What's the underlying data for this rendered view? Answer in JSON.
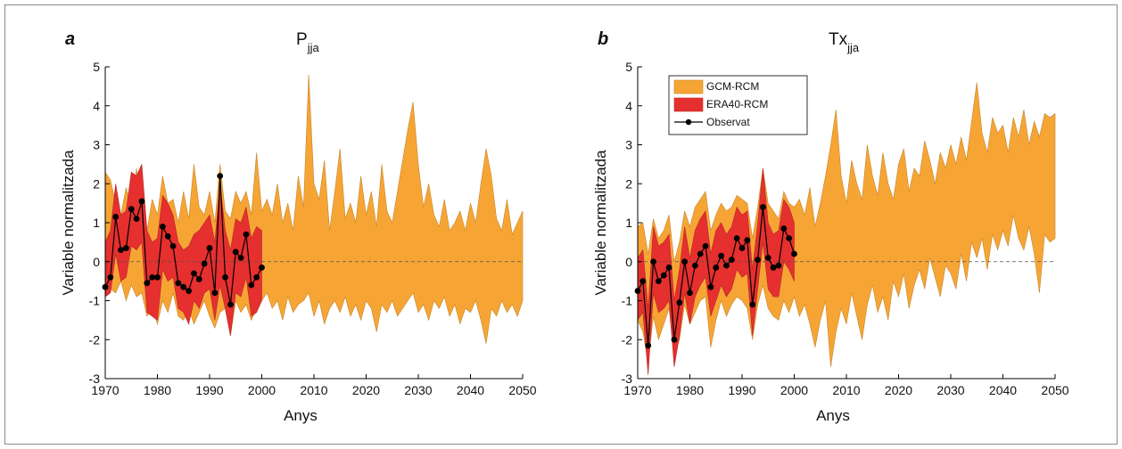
{
  "chart_data": [
    {
      "type": "band-line",
      "panel_label": "a",
      "title": "P",
      "title_sub": "jja",
      "xlabel": "Anys",
      "ylabel": "Variable normalitzada",
      "xlim": [
        1970,
        2050
      ],
      "xticks": [
        1970,
        1980,
        1990,
        2000,
        2010,
        2020,
        2030,
        2040,
        2050
      ],
      "ylim": [
        -3,
        5
      ],
      "yticks": [
        -3,
        -2,
        -1,
        0,
        1,
        2,
        3,
        4,
        5
      ],
      "reference_line": 0,
      "series": [
        {
          "name": "GCM-RCM",
          "kind": "band",
          "color": "#f6a535",
          "x": [
            1970,
            1971,
            1972,
            1973,
            1974,
            1975,
            1976,
            1977,
            1978,
            1979,
            1980,
            1981,
            1982,
            1983,
            1984,
            1985,
            1986,
            1987,
            1988,
            1989,
            1990,
            1991,
            1992,
            1993,
            1994,
            1995,
            1996,
            1997,
            1998,
            1999,
            2000,
            2001,
            2002,
            2003,
            2004,
            2005,
            2006,
            2007,
            2008,
            2009,
            2010,
            2011,
            2012,
            2013,
            2014,
            2015,
            2016,
            2017,
            2018,
            2019,
            2020,
            2021,
            2022,
            2023,
            2024,
            2025,
            2026,
            2027,
            2028,
            2029,
            2030,
            2031,
            2032,
            2033,
            2034,
            2035,
            2036,
            2037,
            2038,
            2039,
            2040,
            2041,
            2042,
            2043,
            2044,
            2045,
            2046,
            2047,
            2048,
            2049,
            2050
          ],
          "upper": [
            2.3,
            2.1,
            1.5,
            1.2,
            1.9,
            1.4,
            2.4,
            1.0,
            0.8,
            1.6,
            1.2,
            2.2,
            1.5,
            1.6,
            1.0,
            1.8,
            1.1,
            2.5,
            1.4,
            1.2,
            1.8,
            1.0,
            2.5,
            1.3,
            1.1,
            1.8,
            1.5,
            1.8,
            1.2,
            2.8,
            1.3,
            1.6,
            1.2,
            2.0,
            1.0,
            1.5,
            0.8,
            2.2,
            1.4,
            4.8,
            2.0,
            1.6,
            2.6,
            0.8,
            1.8,
            2.9,
            1.1,
            1.5,
            1.0,
            2.2,
            1.2,
            1.8,
            0.9,
            2.5,
            1.3,
            1.0,
            1.8,
            2.6,
            3.4,
            4.1,
            2.5,
            1.4,
            2.0,
            1.2,
            0.9,
            1.6,
            0.8,
            1.0,
            1.3,
            0.8,
            1.5,
            1.0,
            2.0,
            2.9,
            2.2,
            1.1,
            0.8,
            1.6,
            0.7,
            1.0,
            1.3
          ],
          "lower": [
            -0.9,
            -0.7,
            -0.8,
            -0.5,
            -1.0,
            -0.6,
            -0.9,
            -0.8,
            -1.4,
            -1.2,
            -1.6,
            -1.0,
            -1.3,
            -0.8,
            -1.4,
            -1.5,
            -1.2,
            -1.6,
            -1.3,
            -1.0,
            -1.4,
            -1.7,
            -1.3,
            -1.2,
            -1.9,
            -1.0,
            -1.3,
            -1.1,
            -1.5,
            -1.2,
            -1.0,
            -0.8,
            -1.2,
            -1.0,
            -1.5,
            -0.9,
            -1.3,
            -1.1,
            -1.0,
            -0.8,
            -1.4,
            -1.0,
            -1.6,
            -1.2,
            -1.0,
            -1.3,
            -0.9,
            -1.4,
            -1.1,
            -1.5,
            -1.0,
            -1.2,
            -1.8,
            -1.1,
            -1.3,
            -1.0,
            -1.4,
            -1.2,
            -1.0,
            -0.8,
            -1.3,
            -1.1,
            -1.5,
            -1.0,
            -1.2,
            -0.9,
            -1.4,
            -1.1,
            -1.6,
            -1.2,
            -1.3,
            -1.0,
            -1.5,
            -2.1,
            -1.2,
            -1.4,
            -1.0,
            -1.3,
            -1.1,
            -1.4,
            -1.0
          ]
        },
        {
          "name": "ERA40-RCM",
          "kind": "band",
          "color": "#e5302f",
          "x": [
            1970,
            1971,
            1972,
            1973,
            1974,
            1975,
            1976,
            1977,
            1978,
            1979,
            1980,
            1981,
            1982,
            1983,
            1984,
            1985,
            1986,
            1987,
            1988,
            1989,
            1990,
            1991,
            1992,
            1993,
            1994,
            1995,
            1996,
            1997,
            1998,
            1999,
            2000
          ],
          "upper": [
            0.5,
            0.8,
            2.0,
            1.2,
            1.3,
            2.3,
            2.2,
            2.5,
            0.8,
            0.5,
            0.6,
            1.7,
            1.5,
            1.2,
            0.5,
            0.3,
            0.4,
            0.7,
            0.8,
            1.0,
            1.2,
            0.5,
            2.0,
            0.8,
            0.3,
            1.1,
            1.0,
            1.4,
            0.6,
            0.9,
            0.8
          ],
          "lower": [
            -0.9,
            -0.8,
            0.2,
            -0.5,
            -0.4,
            0.4,
            0.3,
            0.5,
            -1.3,
            -1.4,
            -1.5,
            -0.2,
            -0.5,
            -0.4,
            -1.2,
            -1.3,
            -1.6,
            -1.0,
            -1.2,
            -0.8,
            -0.7,
            -1.5,
            -0.6,
            -1.2,
            -1.9,
            -0.8,
            -0.9,
            -0.4,
            -1.4,
            -1.3,
            -1.0
          ]
        },
        {
          "name": "Observat",
          "kind": "line",
          "color": "#000000",
          "x": [
            1970,
            1971,
            1972,
            1973,
            1974,
            1975,
            1976,
            1977,
            1978,
            1979,
            1980,
            1981,
            1982,
            1983,
            1984,
            1985,
            1986,
            1987,
            1988,
            1989,
            1990,
            1991,
            1992,
            1993,
            1994,
            1995,
            1996,
            1997,
            1998,
            1999,
            2000
          ],
          "values": [
            -0.65,
            -0.4,
            1.15,
            0.3,
            0.35,
            1.35,
            1.1,
            1.55,
            -0.55,
            -0.4,
            -0.4,
            0.9,
            0.65,
            0.4,
            -0.55,
            -0.65,
            -0.75,
            -0.3,
            -0.45,
            -0.05,
            0.35,
            -0.8,
            2.2,
            -0.4,
            -1.1,
            0.25,
            0.1,
            0.7,
            -0.6,
            -0.4,
            -0.15
          ]
        }
      ]
    },
    {
      "type": "band-line",
      "panel_label": "b",
      "title": "Tx",
      "title_sub": "jja",
      "xlabel": "Anys",
      "ylabel": "Variable normalitzada",
      "xlim": [
        1970,
        2050
      ],
      "xticks": [
        1970,
        1980,
        1990,
        2000,
        2010,
        2020,
        2030,
        2040,
        2050
      ],
      "ylim": [
        -3,
        5
      ],
      "yticks": [
        -3,
        -2,
        -1,
        0,
        1,
        2,
        3,
        4,
        5
      ],
      "reference_line": 0,
      "legend": "upper left",
      "series": [
        {
          "name": "GCM-RCM",
          "kind": "band",
          "color": "#f6a535",
          "x": [
            1970,
            1971,
            1972,
            1973,
            1974,
            1975,
            1976,
            1977,
            1978,
            1979,
            1980,
            1981,
            1982,
            1983,
            1984,
            1985,
            1986,
            1987,
            1988,
            1989,
            1990,
            1991,
            1992,
            1993,
            1994,
            1995,
            1996,
            1997,
            1998,
            1999,
            2000,
            2001,
            2002,
            2003,
            2004,
            2005,
            2006,
            2007,
            2008,
            2009,
            2010,
            2011,
            2012,
            2013,
            2014,
            2015,
            2016,
            2017,
            2018,
            2019,
            2020,
            2021,
            2022,
            2023,
            2024,
            2025,
            2026,
            2027,
            2028,
            2029,
            2030,
            2031,
            2032,
            2033,
            2034,
            2035,
            2036,
            2037,
            2038,
            2039,
            2040,
            2041,
            2042,
            2043,
            2044,
            2045,
            2046,
            2047,
            2048,
            2049,
            2050
          ],
          "upper": [
            0.9,
            1.0,
            0.2,
            1.1,
            0.6,
            0.8,
            1.2,
            0.0,
            0.5,
            1.3,
            0.9,
            1.4,
            1.6,
            1.8,
            0.8,
            1.2,
            1.5,
            1.3,
            1.4,
            1.7,
            1.6,
            1.5,
            0.6,
            1.4,
            2.4,
            1.5,
            1.3,
            1.1,
            1.8,
            1.5,
            1.4,
            1.6,
            1.2,
            1.9,
            0.9,
            1.5,
            2.2,
            3.0,
            3.9,
            2.2,
            1.5,
            2.6,
            2.0,
            1.6,
            3.0,
            2.2,
            1.7,
            2.8,
            2.0,
            1.6,
            2.5,
            2.9,
            1.8,
            2.4,
            2.2,
            3.1,
            2.6,
            2.0,
            2.8,
            2.4,
            3.0,
            2.5,
            3.2,
            2.6,
            3.6,
            4.6,
            3.3,
            2.8,
            3.7,
            3.3,
            3.5,
            2.8,
            3.7,
            3.2,
            3.9,
            3.0,
            3.6,
            3.2,
            3.8,
            3.7,
            3.8
          ],
          "lower": [
            -1.5,
            -1.8,
            -2.6,
            -1.4,
            -2.0,
            -1.6,
            -1.2,
            -2.4,
            -2.0,
            -1.1,
            -1.6,
            -1.3,
            -1.0,
            -0.9,
            -2.2,
            -1.5,
            -1.0,
            -1.4,
            -1.1,
            -0.9,
            -1.0,
            -1.2,
            -2.0,
            -1.1,
            -0.6,
            -1.2,
            -1.4,
            -1.5,
            -1.0,
            -1.3,
            -0.9,
            -1.4,
            -1.1,
            -1.6,
            -2.2,
            -1.5,
            -1.0,
            -2.7,
            -1.8,
            -1.2,
            -1.6,
            -0.8,
            -1.4,
            -2.0,
            -1.1,
            -0.6,
            -1.3,
            -0.9,
            -1.5,
            -0.5,
            -0.9,
            -0.3,
            -1.2,
            -0.6,
            -0.2,
            -0.7,
            0.1,
            -0.4,
            -0.9,
            -0.1,
            -0.3,
            -0.7,
            0.2,
            -0.5,
            0.5,
            0.1,
            0.6,
            -0.2,
            0.7,
            0.3,
            0.8,
            0.4,
            1.2,
            0.6,
            0.3,
            0.9,
            0.2,
            -0.8,
            0.7,
            0.5,
            0.6
          ]
        },
        {
          "name": "ERA40-RCM",
          "kind": "band",
          "color": "#e5302f",
          "x": [
            1970,
            1971,
            1972,
            1973,
            1974,
            1975,
            1976,
            1977,
            1978,
            1979,
            1980,
            1981,
            1982,
            1983,
            1984,
            1985,
            1986,
            1987,
            1988,
            1989,
            1990,
            1991,
            1992,
            1993,
            1994,
            1995,
            1996,
            1997,
            1998,
            1999,
            2000
          ],
          "upper": [
            0.1,
            0.3,
            -1.2,
            0.9,
            0.4,
            0.5,
            0.7,
            -1.0,
            -0.2,
            0.9,
            0.1,
            0.8,
            1.1,
            1.3,
            0.2,
            0.8,
            1.0,
            0.7,
            0.9,
            1.4,
            1.2,
            1.3,
            -0.2,
            1.0,
            2.4,
            1.0,
            0.7,
            0.8,
            1.6,
            1.4,
            1.0
          ],
          "lower": [
            -1.5,
            -1.3,
            -2.9,
            -0.8,
            -1.3,
            -1.2,
            -1.0,
            -2.7,
            -1.9,
            -0.8,
            -1.6,
            -0.9,
            -0.6,
            -0.4,
            -1.4,
            -1.0,
            -0.6,
            -0.9,
            -0.7,
            -0.2,
            -0.4,
            -0.3,
            -1.9,
            -0.7,
            0.5,
            -0.7,
            -0.9,
            -0.9,
            0.0,
            -0.2,
            -0.5
          ]
        },
        {
          "name": "Observat",
          "kind": "line",
          "color": "#000000",
          "x": [
            1970,
            1971,
            1972,
            1973,
            1974,
            1975,
            1976,
            1977,
            1978,
            1979,
            1980,
            1981,
            1982,
            1983,
            1984,
            1985,
            1986,
            1987,
            1988,
            1989,
            1990,
            1991,
            1992,
            1993,
            1994,
            1995,
            1996,
            1997,
            1998,
            1999,
            2000
          ],
          "values": [
            -0.75,
            -0.5,
            -2.15,
            0,
            -0.5,
            -0.35,
            -0.15,
            -2.0,
            -1.05,
            0,
            -0.8,
            -0.1,
            0.2,
            0.4,
            -0.65,
            -0.15,
            0.15,
            -0.1,
            0.05,
            0.6,
            0.35,
            0.55,
            -1.1,
            0.05,
            1.4,
            0.1,
            -0.15,
            -0.1,
            0.85,
            0.6,
            0.2
          ]
        }
      ]
    }
  ]
}
